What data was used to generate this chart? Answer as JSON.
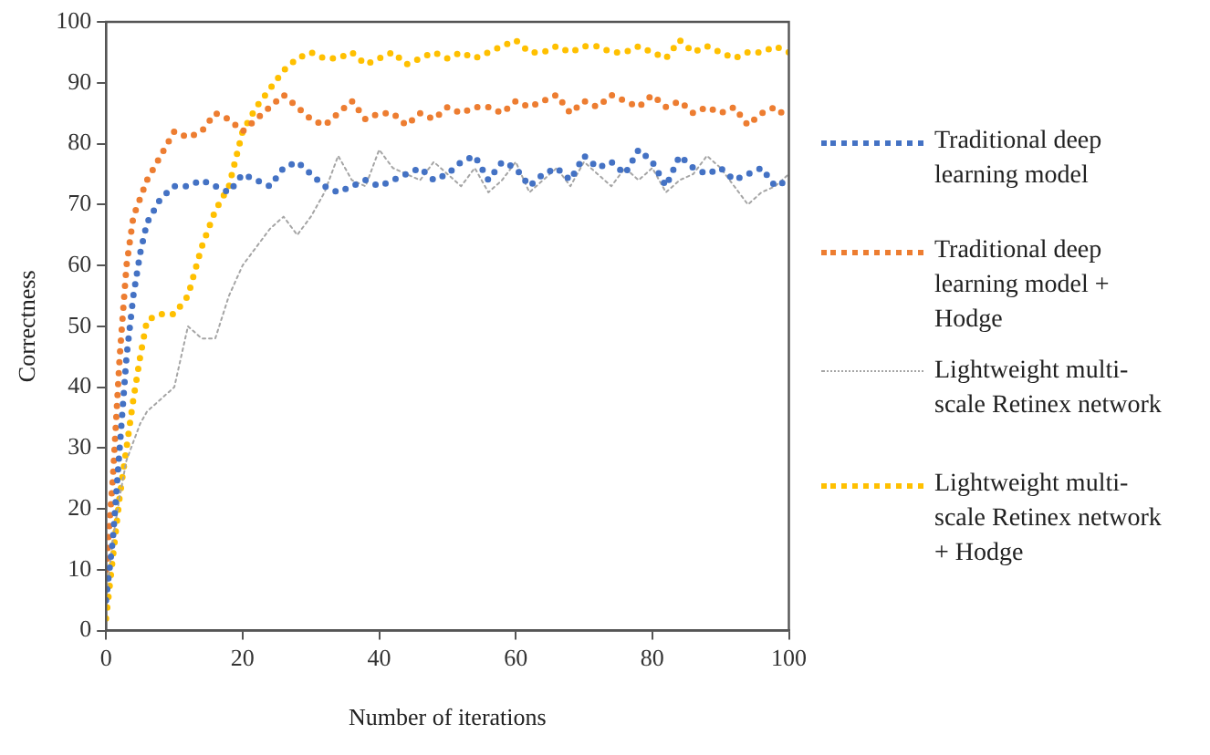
{
  "chart_data": {
    "type": "line",
    "xlabel": "Number of iterations",
    "ylabel": "Correctness",
    "x": [
      0,
      1,
      2,
      3,
      4,
      5,
      6,
      8,
      10,
      12,
      14,
      16,
      18,
      20,
      22,
      24,
      26,
      28,
      30,
      32,
      34,
      36,
      38,
      40,
      42,
      44,
      46,
      48,
      50,
      52,
      54,
      56,
      58,
      60,
      62,
      64,
      66,
      68,
      70,
      72,
      74,
      76,
      78,
      80,
      82,
      84,
      86,
      88,
      90,
      92,
      94,
      96,
      98,
      100
    ],
    "xlim": [
      0,
      100
    ],
    "xticks": [
      0,
      20,
      40,
      60,
      80,
      100
    ],
    "ylim": [
      0,
      100
    ],
    "yticks": [
      0,
      10,
      20,
      30,
      40,
      50,
      60,
      70,
      80,
      90,
      100
    ],
    "grid": false,
    "legend": "right",
    "marker": "none",
    "series": [
      {
        "name": "Traditional deep learning model",
        "color": "#4472c4",
        "line_style": "dotted",
        "values": [
          5,
          15,
          30,
          45,
          55,
          62,
          67,
          71,
          73,
          73,
          74,
          73,
          72,
          75,
          74,
          73,
          76,
          77,
          75,
          73,
          72,
          73,
          74,
          73,
          74,
          75,
          76,
          74,
          75,
          77,
          78,
          74,
          77,
          76,
          73,
          75,
          76,
          74,
          78,
          76,
          77,
          75,
          79,
          77,
          73,
          78,
          76,
          75,
          76,
          74,
          75,
          76,
          73,
          74
        ]
      },
      {
        "name": "Traditional deep learning model + Hodge",
        "color": "#ed7d31",
        "line_style": "dotted",
        "values": [
          10,
          25,
          45,
          60,
          68,
          71,
          74,
          78,
          82,
          81,
          82,
          85,
          84,
          82,
          84,
          86,
          88,
          86,
          84,
          83,
          85,
          87,
          84,
          85,
          85,
          83,
          85,
          84,
          86,
          85,
          86,
          86,
          85,
          87,
          86,
          87,
          88,
          85,
          87,
          86,
          88,
          87,
          86,
          88,
          86,
          87,
          85,
          86,
          85,
          86,
          83,
          85,
          86,
          84
        ]
      },
      {
        "name": "Lightweight multi-scale Retinex network",
        "color": "#a5a5a5",
        "line_style": "dotted",
        "values": [
          5,
          15,
          22,
          28,
          31,
          34,
          36,
          38,
          40,
          50,
          48,
          48,
          55,
          60,
          63,
          66,
          68,
          65,
          68,
          72,
          78,
          74,
          73,
          79,
          76,
          75,
          74,
          77,
          75,
          73,
          76,
          72,
          74,
          77,
          72,
          74,
          76,
          73,
          77,
          75,
          73,
          76,
          74,
          76,
          72,
          74,
          75,
          78,
          76,
          73,
          70,
          72,
          73,
          75
        ]
      },
      {
        "name": "Lightweight multi-scale Retinex network + Hodge",
        "color": "#ffc000",
        "line_style": "dotted",
        "values": [
          2,
          12,
          22,
          30,
          38,
          45,
          51,
          52,
          52,
          55,
          63,
          69,
          73,
          82,
          86,
          89,
          92,
          94,
          95,
          94,
          94,
          95,
          93,
          94,
          95,
          93,
          94,
          95,
          94,
          95,
          94,
          95,
          96,
          97,
          95,
          95,
          96,
          95,
          96,
          96,
          95,
          95,
          96,
          95,
          94,
          97,
          95,
          96,
          95,
          94,
          95,
          95,
          96,
          95
        ]
      }
    ]
  }
}
